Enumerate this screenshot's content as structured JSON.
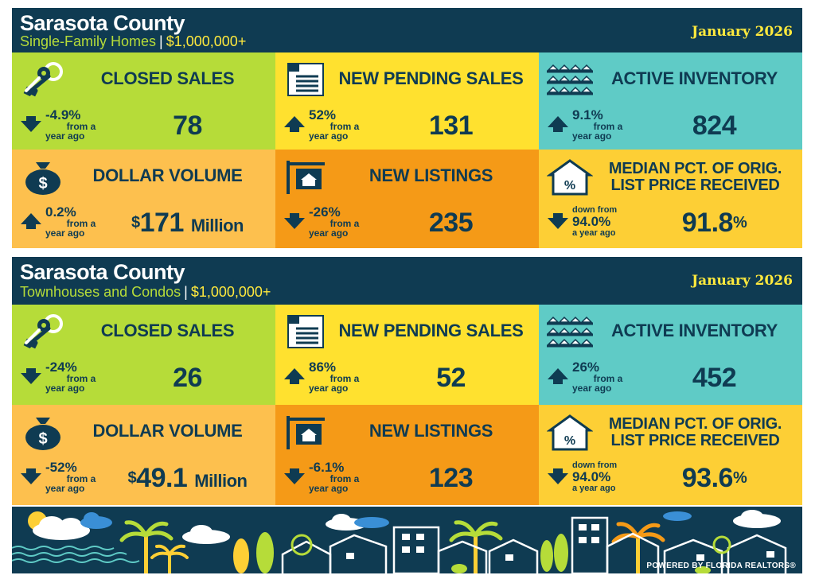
{
  "panels": [
    {
      "county": "Sarasota County",
      "property_type": "Single-Family Homes",
      "separator": "|",
      "price_range": "$1,000,000+",
      "month": "January 2026",
      "metrics": {
        "closed_sales": {
          "label": "CLOSED SALES",
          "pct": "-4.9%",
          "from": "from a",
          "ago": "year ago",
          "direction": "down",
          "value": "78"
        },
        "new_pending_sales": {
          "label": "NEW PENDING SALES",
          "pct": "52%",
          "from": "from a",
          "ago": "year ago",
          "direction": "up",
          "value": "131"
        },
        "active_inventory": {
          "label": "ACTIVE INVENTORY",
          "pct": "9.1%",
          "from": "from a",
          "ago": "year ago",
          "direction": "up",
          "value": "824"
        },
        "dollar_volume": {
          "label": "DOLLAR VOLUME",
          "pct": "0.2%",
          "from": "from a",
          "ago": "year ago",
          "direction": "up",
          "currency": "$",
          "value": "171",
          "unit": "Million"
        },
        "new_listings": {
          "label": "NEW LISTINGS",
          "pct": "-26%",
          "from": "from a",
          "ago": "year ago",
          "direction": "down",
          "value": "235"
        },
        "median_pct": {
          "label_line1": "MEDIAN PCT. OF ORIG.",
          "label_line2": "LIST PRICE RECEIVED",
          "down_from": "down from",
          "prev": "94.0%",
          "ago": "a year ago",
          "direction": "down",
          "value": "91.8",
          "pct_sign": "%"
        }
      }
    },
    {
      "county": "Sarasota County",
      "property_type": "Townhouses and Condos",
      "separator": "|",
      "price_range": "$1,000,000+",
      "month": "January 2026",
      "metrics": {
        "closed_sales": {
          "label": "CLOSED SALES",
          "pct": "-24%",
          "from": "from a",
          "ago": "year ago",
          "direction": "down",
          "value": "26"
        },
        "new_pending_sales": {
          "label": "NEW PENDING SALES",
          "pct": "86%",
          "from": "from a",
          "ago": "year ago",
          "direction": "up",
          "value": "52"
        },
        "active_inventory": {
          "label": "ACTIVE INVENTORY",
          "pct": "26%",
          "from": "from a",
          "ago": "year ago",
          "direction": "up",
          "value": "452"
        },
        "dollar_volume": {
          "label": "DOLLAR VOLUME",
          "pct": "-52%",
          "from": "from a",
          "ago": "year ago",
          "direction": "down",
          "currency": "$",
          "value": "49.1",
          "unit": "Million"
        },
        "new_listings": {
          "label": "NEW LISTINGS",
          "pct": "-6.1%",
          "from": "from a",
          "ago": "year ago",
          "direction": "down",
          "value": "123"
        },
        "median_pct": {
          "label_line1": "MEDIAN PCT. OF ORIG.",
          "label_line2": "LIST PRICE RECEIVED",
          "down_from": "down from",
          "prev": "94.0%",
          "ago": "a year ago",
          "direction": "down",
          "value": "93.6",
          "pct_sign": "%"
        }
      }
    }
  ],
  "footer": {
    "powered_by": "POWERED BY FLORIDA REALTORS®"
  },
  "colors": {
    "navy": "#0f3b52",
    "green": "#b6dc39",
    "yellow": "#ffe12f",
    "teal": "#5fcbc6",
    "peach": "#fdc04e",
    "orange": "#f59a17",
    "gold": "#fdcf35",
    "month": "#ffe93d"
  },
  "icons": [
    "keys-icon",
    "document-icon",
    "houses-icon",
    "money-bag-icon",
    "for-sale-sign-icon",
    "percent-house-icon",
    "arrow-up-icon",
    "arrow-down-icon"
  ]
}
